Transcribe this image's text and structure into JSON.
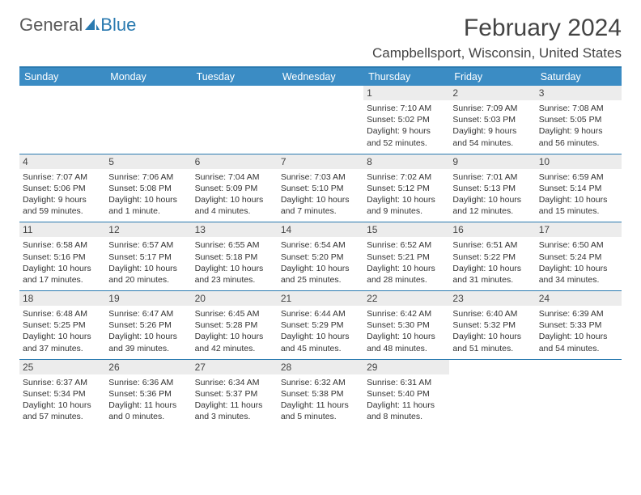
{
  "logo": {
    "word1": "General",
    "word2": "Blue",
    "accent_color": "#2a7ab0"
  },
  "title": "February 2024",
  "location": "Campbellsport, Wisconsin, United States",
  "colors": {
    "header_bg": "#3b8cc4",
    "divider": "#2a7ab0",
    "day_bg": "#ececec",
    "text": "#333333",
    "background": "#ffffff"
  },
  "weekdays": [
    "Sunday",
    "Monday",
    "Tuesday",
    "Wednesday",
    "Thursday",
    "Friday",
    "Saturday"
  ],
  "weeks": [
    [
      null,
      null,
      null,
      null,
      {
        "n": "1",
        "sunrise": "7:10 AM",
        "sunset": "5:02 PM",
        "daylight": "9 hours and 52 minutes."
      },
      {
        "n": "2",
        "sunrise": "7:09 AM",
        "sunset": "5:03 PM",
        "daylight": "9 hours and 54 minutes."
      },
      {
        "n": "3",
        "sunrise": "7:08 AM",
        "sunset": "5:05 PM",
        "daylight": "9 hours and 56 minutes."
      }
    ],
    [
      {
        "n": "4",
        "sunrise": "7:07 AM",
        "sunset": "5:06 PM",
        "daylight": "9 hours and 59 minutes."
      },
      {
        "n": "5",
        "sunrise": "7:06 AM",
        "sunset": "5:08 PM",
        "daylight": "10 hours and 1 minute."
      },
      {
        "n": "6",
        "sunrise": "7:04 AM",
        "sunset": "5:09 PM",
        "daylight": "10 hours and 4 minutes."
      },
      {
        "n": "7",
        "sunrise": "7:03 AM",
        "sunset": "5:10 PM",
        "daylight": "10 hours and 7 minutes."
      },
      {
        "n": "8",
        "sunrise": "7:02 AM",
        "sunset": "5:12 PM",
        "daylight": "10 hours and 9 minutes."
      },
      {
        "n": "9",
        "sunrise": "7:01 AM",
        "sunset": "5:13 PM",
        "daylight": "10 hours and 12 minutes."
      },
      {
        "n": "10",
        "sunrise": "6:59 AM",
        "sunset": "5:14 PM",
        "daylight": "10 hours and 15 minutes."
      }
    ],
    [
      {
        "n": "11",
        "sunrise": "6:58 AM",
        "sunset": "5:16 PM",
        "daylight": "10 hours and 17 minutes."
      },
      {
        "n": "12",
        "sunrise": "6:57 AM",
        "sunset": "5:17 PM",
        "daylight": "10 hours and 20 minutes."
      },
      {
        "n": "13",
        "sunrise": "6:55 AM",
        "sunset": "5:18 PM",
        "daylight": "10 hours and 23 minutes."
      },
      {
        "n": "14",
        "sunrise": "6:54 AM",
        "sunset": "5:20 PM",
        "daylight": "10 hours and 25 minutes."
      },
      {
        "n": "15",
        "sunrise": "6:52 AM",
        "sunset": "5:21 PM",
        "daylight": "10 hours and 28 minutes."
      },
      {
        "n": "16",
        "sunrise": "6:51 AM",
        "sunset": "5:22 PM",
        "daylight": "10 hours and 31 minutes."
      },
      {
        "n": "17",
        "sunrise": "6:50 AM",
        "sunset": "5:24 PM",
        "daylight": "10 hours and 34 minutes."
      }
    ],
    [
      {
        "n": "18",
        "sunrise": "6:48 AM",
        "sunset": "5:25 PM",
        "daylight": "10 hours and 37 minutes."
      },
      {
        "n": "19",
        "sunrise": "6:47 AM",
        "sunset": "5:26 PM",
        "daylight": "10 hours and 39 minutes."
      },
      {
        "n": "20",
        "sunrise": "6:45 AM",
        "sunset": "5:28 PM",
        "daylight": "10 hours and 42 minutes."
      },
      {
        "n": "21",
        "sunrise": "6:44 AM",
        "sunset": "5:29 PM",
        "daylight": "10 hours and 45 minutes."
      },
      {
        "n": "22",
        "sunrise": "6:42 AM",
        "sunset": "5:30 PM",
        "daylight": "10 hours and 48 minutes."
      },
      {
        "n": "23",
        "sunrise": "6:40 AM",
        "sunset": "5:32 PM",
        "daylight": "10 hours and 51 minutes."
      },
      {
        "n": "24",
        "sunrise": "6:39 AM",
        "sunset": "5:33 PM",
        "daylight": "10 hours and 54 minutes."
      }
    ],
    [
      {
        "n": "25",
        "sunrise": "6:37 AM",
        "sunset": "5:34 PM",
        "daylight": "10 hours and 57 minutes."
      },
      {
        "n": "26",
        "sunrise": "6:36 AM",
        "sunset": "5:36 PM",
        "daylight": "11 hours and 0 minutes."
      },
      {
        "n": "27",
        "sunrise": "6:34 AM",
        "sunset": "5:37 PM",
        "daylight": "11 hours and 3 minutes."
      },
      {
        "n": "28",
        "sunrise": "6:32 AM",
        "sunset": "5:38 PM",
        "daylight": "11 hours and 5 minutes."
      },
      {
        "n": "29",
        "sunrise": "6:31 AM",
        "sunset": "5:40 PM",
        "daylight": "11 hours and 8 minutes."
      },
      null,
      null
    ]
  ]
}
